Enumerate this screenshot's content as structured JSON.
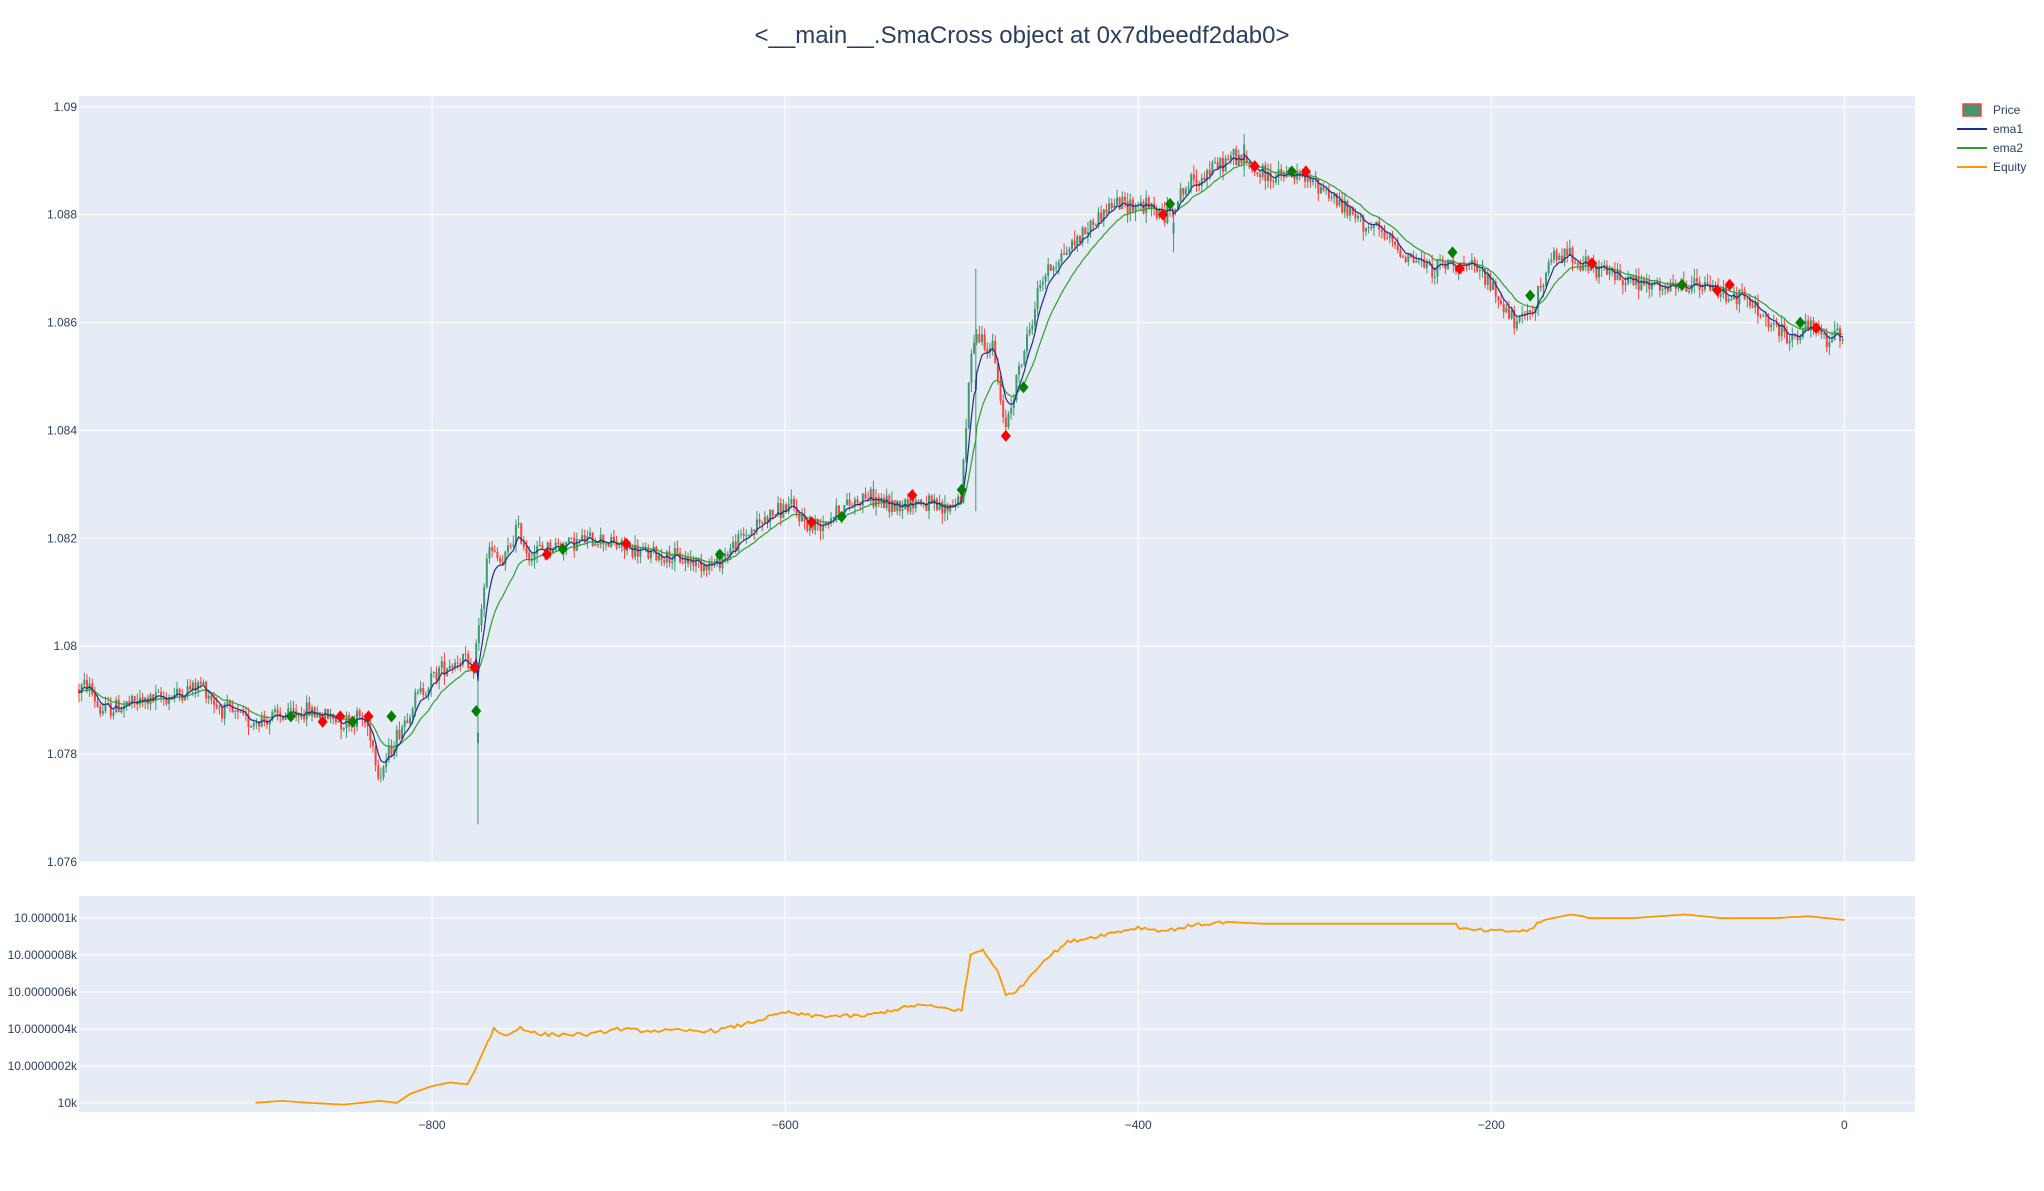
{
  "title": "<__main__.SmaCross object at 0x7dbeedf2dab0>",
  "colors": {
    "plot_bg": "#e5ecf6",
    "grid": "#ffffff",
    "axis_text": "#2a3f5f",
    "increasing": "#3d9970",
    "decreasing": "#ff4136",
    "ema1": "#1f2e8c",
    "ema2": "#2ca02c",
    "equity": "#ff9800",
    "buy_marker": "#008000",
    "sell_marker": "#ff0000"
  },
  "legend": {
    "placement": "top-right",
    "items": [
      {
        "label": "Price",
        "kind": "candle"
      },
      {
        "label": "ema1",
        "kind": "line",
        "color": "#1f2e8c"
      },
      {
        "label": "ema2",
        "kind": "line",
        "color": "#2ca02c"
      },
      {
        "label": "Equity",
        "kind": "line",
        "color": "#ff9800"
      }
    ]
  },
  "chart_data": [
    {
      "type": "candlestick",
      "name": "Price",
      "xlim": [
        -1000,
        40
      ],
      "ylim": [
        1.076,
        1.0902
      ],
      "x_ticks": [
        -800,
        -600,
        -400,
        -200,
        0
      ],
      "x_tick_labels": [
        "−800",
        "−600",
        "−400",
        "−200",
        "0"
      ],
      "y_ticks": [
        1.076,
        1.078,
        1.08,
        1.082,
        1.084,
        1.086,
        1.088,
        1.09
      ],
      "y_tick_labels": [
        "1.076",
        "1.078",
        "1.08",
        "1.082",
        "1.084",
        "1.086",
        "1.088",
        "1.09"
      ],
      "grid": true,
      "price_path": [
        [
          -1000,
          1.0792
        ],
        [
          -995,
          1.0793
        ],
        [
          -988,
          1.0788
        ],
        [
          -975,
          1.0789
        ],
        [
          -960,
          1.079
        ],
        [
          -945,
          1.0791
        ],
        [
          -930,
          1.0793
        ],
        [
          -922,
          1.0789
        ],
        [
          -905,
          1.0786
        ],
        [
          -885,
          1.0787
        ],
        [
          -870,
          1.0788
        ],
        [
          -860,
          1.0787
        ],
        [
          -850,
          1.0786
        ],
        [
          -840,
          1.0787
        ],
        [
          -835,
          1.0784
        ],
        [
          -830,
          1.0776
        ],
        [
          -822,
          1.0782
        ],
        [
          -810,
          1.079
        ],
        [
          -795,
          1.0796
        ],
        [
          -782,
          1.0798
        ],
        [
          -778,
          1.0794
        ],
        [
          -774,
          1.0802
        ],
        [
          -768,
          1.0818
        ],
        [
          -760,
          1.0815
        ],
        [
          -752,
          1.0822
        ],
        [
          -745,
          1.0817
        ],
        [
          -738,
          1.0818
        ],
        [
          -725,
          1.0819
        ],
        [
          -705,
          1.082
        ],
        [
          -690,
          1.0818
        ],
        [
          -675,
          1.0817
        ],
        [
          -655,
          1.0816
        ],
        [
          -640,
          1.0815
        ],
        [
          -625,
          1.082
        ],
        [
          -610,
          1.0824
        ],
        [
          -598,
          1.0826
        ],
        [
          -585,
          1.0822
        ],
        [
          -570,
          1.0825
        ],
        [
          -555,
          1.0828
        ],
        [
          -540,
          1.0826
        ],
        [
          -525,
          1.0827
        ],
        [
          -510,
          1.0825
        ],
        [
          -500,
          1.0828
        ],
        [
          -494,
          1.0858
        ],
        [
          -488,
          1.0857
        ],
        [
          -482,
          1.0855
        ],
        [
          -476,
          1.084
        ],
        [
          -470,
          1.0848
        ],
        [
          -462,
          1.0858
        ],
        [
          -455,
          1.0868
        ],
        [
          -445,
          1.0872
        ],
        [
          -430,
          1.0877
        ],
        [
          -415,
          1.0882
        ],
        [
          -400,
          1.0882
        ],
        [
          -385,
          1.088
        ],
        [
          -370,
          1.0886
        ],
        [
          -355,
          1.0889
        ],
        [
          -345,
          1.0891
        ],
        [
          -335,
          1.0888
        ],
        [
          -325,
          1.0887
        ],
        [
          -310,
          1.0887
        ],
        [
          -295,
          1.0885
        ],
        [
          -280,
          1.088
        ],
        [
          -265,
          1.0877
        ],
        [
          -250,
          1.0873
        ],
        [
          -235,
          1.087
        ],
        [
          -220,
          1.0871
        ],
        [
          -205,
          1.0869
        ],
        [
          -195,
          1.0864
        ],
        [
          -185,
          1.0859
        ],
        [
          -175,
          1.0864
        ],
        [
          -165,
          1.0872
        ],
        [
          -155,
          1.0873
        ],
        [
          -145,
          1.087
        ],
        [
          -130,
          1.0869
        ],
        [
          -115,
          1.0867
        ],
        [
          -100,
          1.0866
        ],
        [
          -85,
          1.0867
        ],
        [
          -70,
          1.0866
        ],
        [
          -55,
          1.0864
        ],
        [
          -40,
          1.0859
        ],
        [
          -30,
          1.0857
        ],
        [
          -20,
          1.0859
        ],
        [
          -10,
          1.0857
        ],
        [
          0,
          1.0858
        ]
      ],
      "spikes": [
        {
          "x": -774,
          "high": 1.0797,
          "low": 1.0767
        },
        {
          "x": -492,
          "high": 1.087,
          "low": 1.0825
        },
        {
          "x": -380,
          "high": 1.088,
          "low": 1.0873
        },
        {
          "x": -340,
          "high": 1.0895,
          "low": 1.0887
        }
      ],
      "trades": [
        {
          "x": -880,
          "y": 1.0787,
          "side": "buy"
        },
        {
          "x": -862,
          "y": 1.0786,
          "side": "sell"
        },
        {
          "x": -852,
          "y": 1.0787,
          "side": "sell"
        },
        {
          "x": -845,
          "y": 1.0786,
          "side": "buy"
        },
        {
          "x": -836,
          "y": 1.0787,
          "side": "sell"
        },
        {
          "x": -823,
          "y": 1.0787,
          "side": "buy"
        },
        {
          "x": -776,
          "y": 1.0796,
          "side": "sell"
        },
        {
          "x": -775,
          "y": 1.0788,
          "side": "buy"
        },
        {
          "x": -735,
          "y": 1.0817,
          "side": "sell"
        },
        {
          "x": -726,
          "y": 1.0818,
          "side": "buy"
        },
        {
          "x": -690,
          "y": 1.0819,
          "side": "sell"
        },
        {
          "x": -637,
          "y": 1.0817,
          "side": "buy"
        },
        {
          "x": -585,
          "y": 1.0823,
          "side": "sell"
        },
        {
          "x": -568,
          "y": 1.0824,
          "side": "buy"
        },
        {
          "x": -528,
          "y": 1.0828,
          "side": "sell"
        },
        {
          "x": -500,
          "y": 1.0829,
          "side": "buy"
        },
        {
          "x": -475,
          "y": 1.0839,
          "side": "sell"
        },
        {
          "x": -465,
          "y": 1.0848,
          "side": "buy"
        },
        {
          "x": -386,
          "y": 1.088,
          "side": "sell"
        },
        {
          "x": -382,
          "y": 1.0882,
          "side": "buy"
        },
        {
          "x": -334,
          "y": 1.0889,
          "side": "sell"
        },
        {
          "x": -313,
          "y": 1.0888,
          "side": "buy"
        },
        {
          "x": -305,
          "y": 1.0888,
          "side": "sell"
        },
        {
          "x": -222,
          "y": 1.0873,
          "side": "buy"
        },
        {
          "x": -218,
          "y": 1.087,
          "side": "sell"
        },
        {
          "x": -178,
          "y": 1.0865,
          "side": "buy"
        },
        {
          "x": -143,
          "y": 1.0871,
          "side": "sell"
        },
        {
          "x": -92,
          "y": 1.0867,
          "side": "buy"
        },
        {
          "x": -72,
          "y": 1.0866,
          "side": "sell"
        },
        {
          "x": -65,
          "y": 1.0867,
          "side": "sell"
        },
        {
          "x": -25,
          "y": 1.086,
          "side": "buy"
        },
        {
          "x": -16,
          "y": 1.0859,
          "side": "sell"
        }
      ]
    },
    {
      "type": "line",
      "name": "Equity",
      "xlim": [
        -1000,
        40
      ],
      "ylim": [
        9999.99999995,
        10000.00000112
      ],
      "y_ticks": [
        10000,
        10000.0000002,
        10000.0000004,
        10000.0000006,
        10000.0000008,
        10000.000001
      ],
      "y_tick_labels": [
        "10k",
        "10.0000002k",
        "10.0000004k",
        "10.0000006k",
        "10.0000008k",
        "10.000001k"
      ],
      "x_ticks": [
        -800,
        -600,
        -400,
        -200,
        0
      ],
      "x_tick_labels": [
        "−800",
        "−600",
        "−400",
        "−200",
        "0"
      ],
      "grid": true,
      "points": [
        [
          -900,
          0.0
        ],
        [
          -885,
          0.01
        ],
        [
          -870,
          0.0
        ],
        [
          -850,
          -0.01
        ],
        [
          -830,
          0.01
        ],
        [
          -820,
          0.0
        ],
        [
          -812,
          0.05
        ],
        [
          -800,
          0.09
        ],
        [
          -790,
          0.11
        ],
        [
          -780,
          0.1
        ],
        [
          -776,
          0.17
        ],
        [
          -770,
          0.3
        ],
        [
          -765,
          0.4
        ],
        [
          -758,
          0.36
        ],
        [
          -750,
          0.41
        ],
        [
          -740,
          0.37
        ],
        [
          -710,
          0.37
        ],
        [
          -695,
          0.4
        ],
        [
          -680,
          0.39
        ],
        [
          -640,
          0.39
        ],
        [
          -625,
          0.42
        ],
        [
          -600,
          0.49
        ],
        [
          -585,
          0.47
        ],
        [
          -555,
          0.47
        ],
        [
          -540,
          0.5
        ],
        [
          -525,
          0.53
        ],
        [
          -500,
          0.5
        ],
        [
          -495,
          0.8
        ],
        [
          -488,
          0.83
        ],
        [
          -480,
          0.72
        ],
        [
          -475,
          0.58
        ],
        [
          -467,
          0.62
        ],
        [
          -455,
          0.76
        ],
        [
          -440,
          0.87
        ],
        [
          -425,
          0.9
        ],
        [
          -400,
          0.95
        ],
        [
          -385,
          0.93
        ],
        [
          -370,
          0.96
        ],
        [
          -350,
          0.98
        ],
        [
          -330,
          0.97
        ],
        [
          -300,
          0.97
        ],
        [
          -250,
          0.97
        ],
        [
          -220,
          0.97
        ],
        [
          -218,
          0.94
        ],
        [
          -200,
          0.93
        ],
        [
          -180,
          0.93
        ],
        [
          -170,
          0.99
        ],
        [
          -155,
          1.02
        ],
        [
          -148,
          1.01
        ],
        [
          -145,
          1.0
        ],
        [
          -120,
          1.0
        ],
        [
          -90,
          1.02
        ],
        [
          -70,
          1.0
        ],
        [
          -40,
          1.0
        ],
        [
          -20,
          1.01
        ],
        [
          0,
          0.99
        ]
      ]
    }
  ]
}
